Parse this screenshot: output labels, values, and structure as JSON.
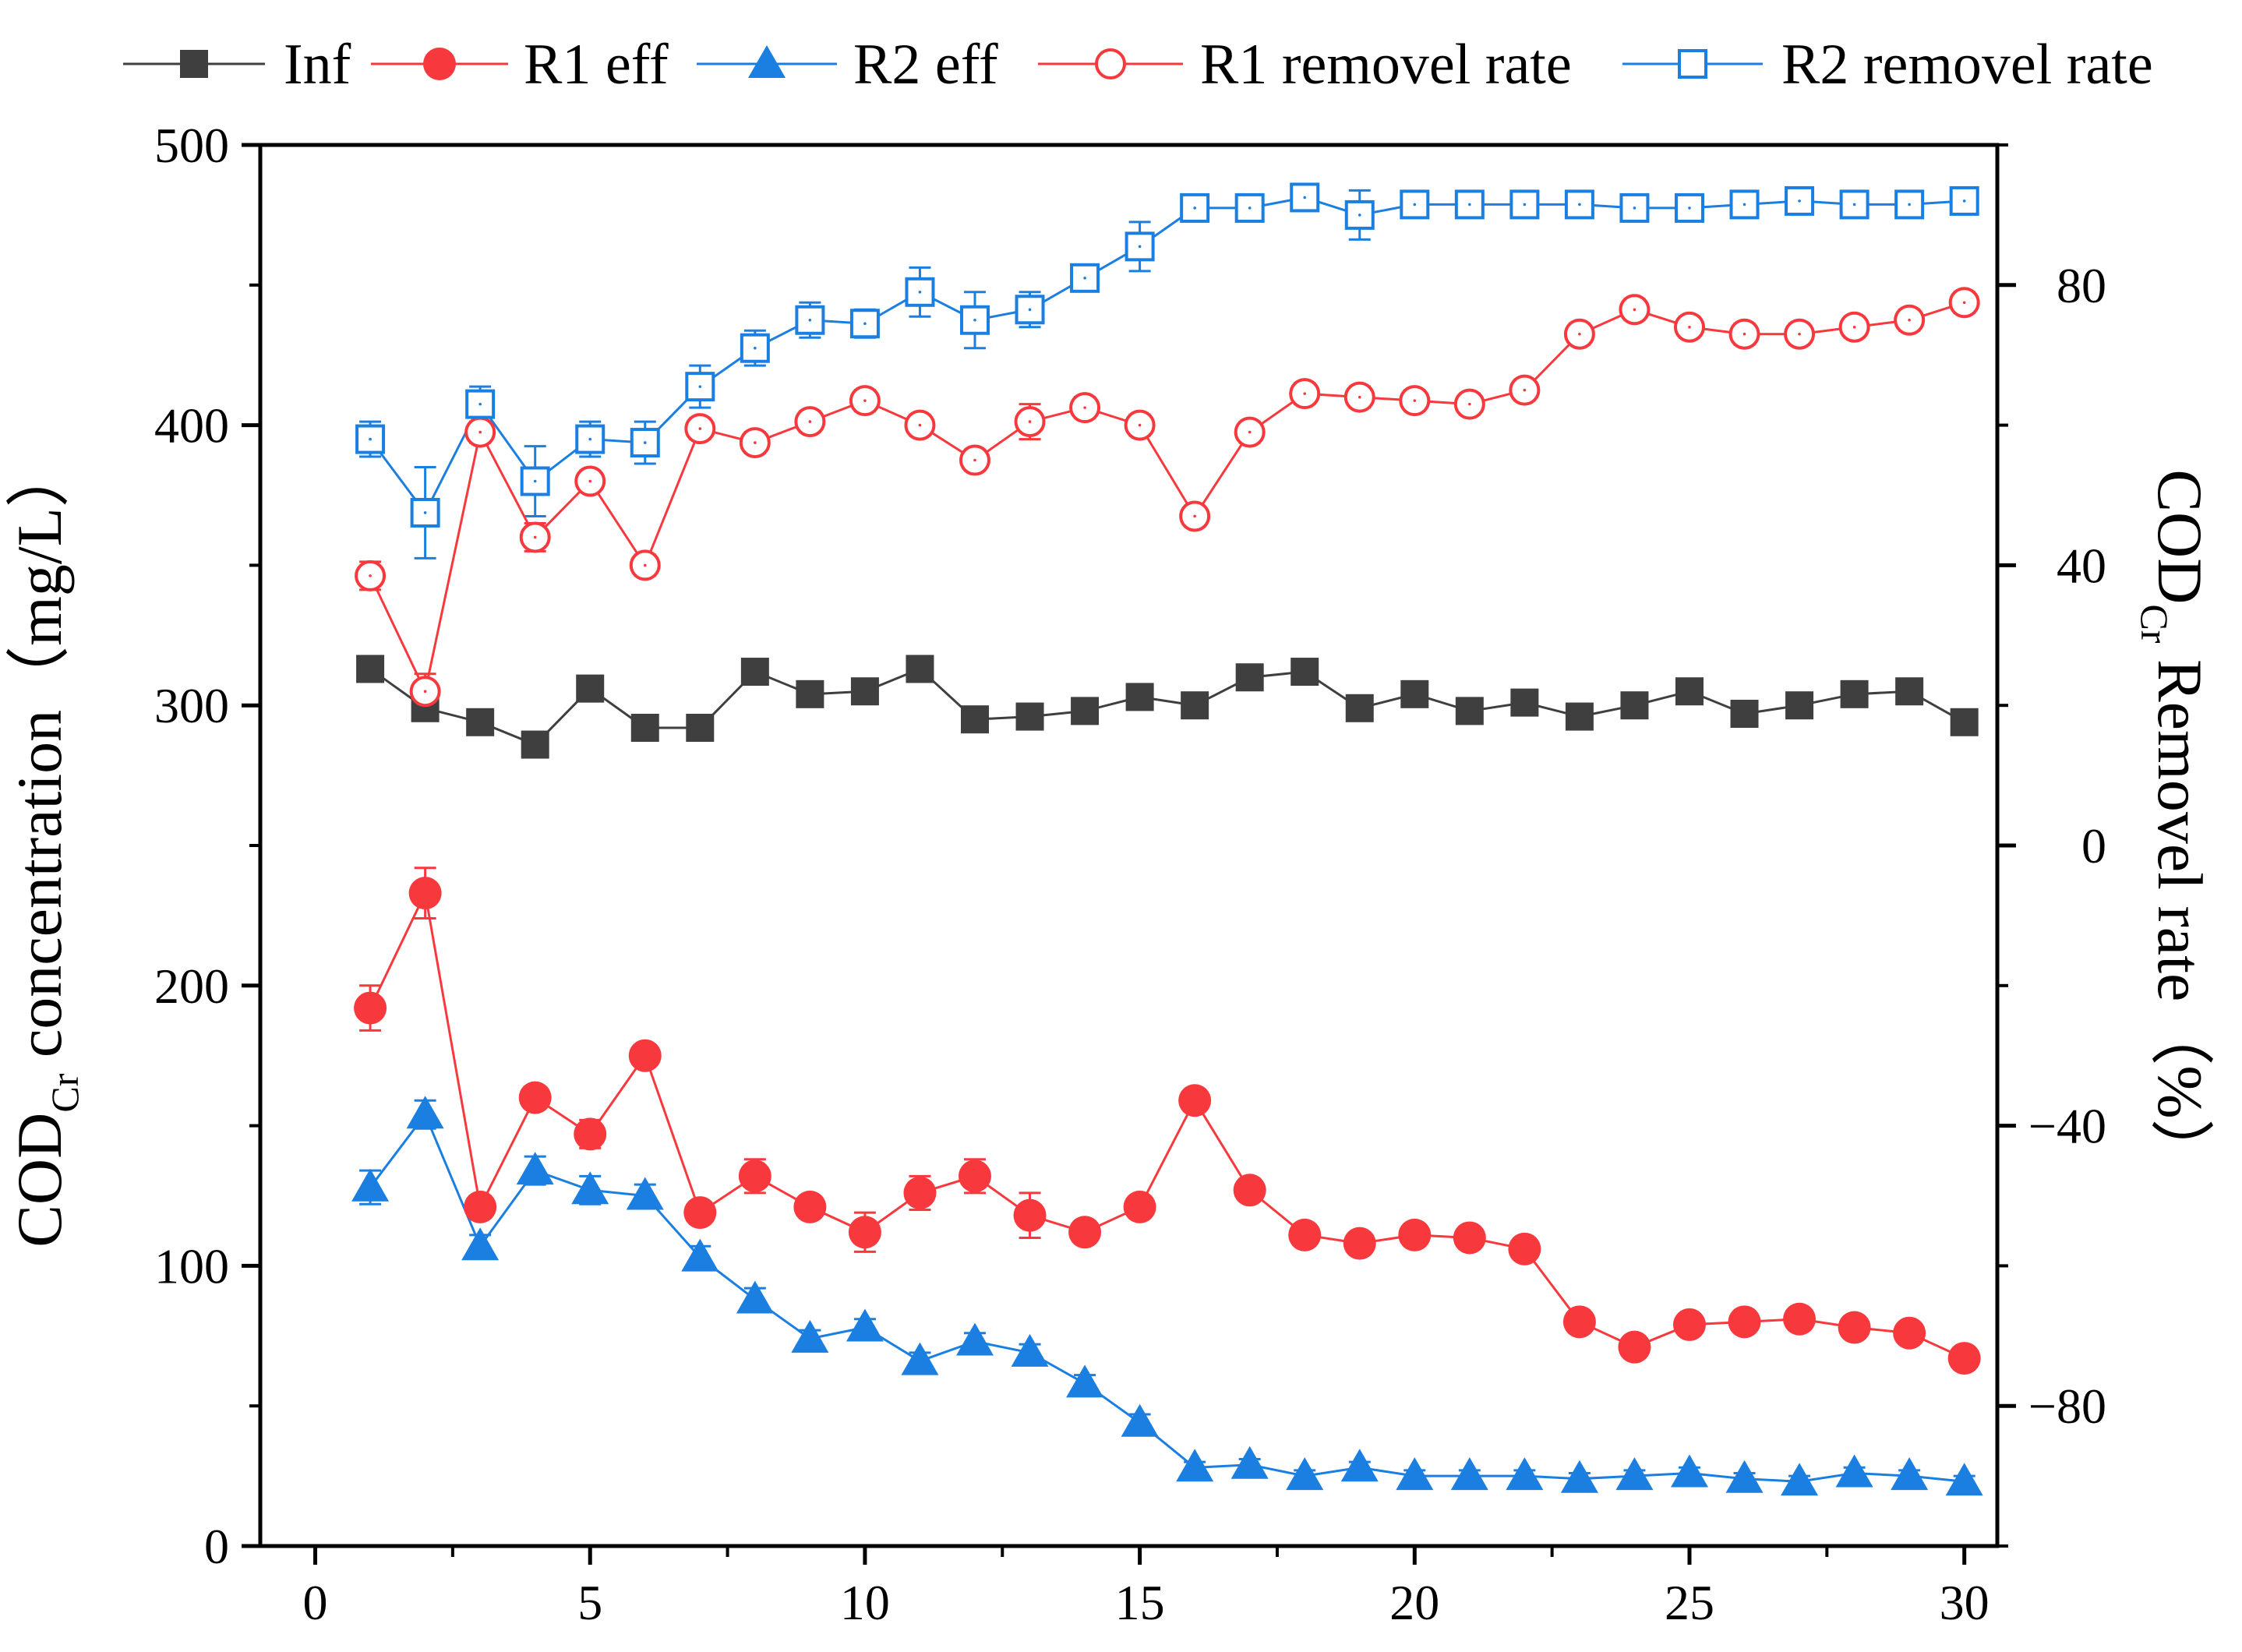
{
  "chart_data": {
    "type": "line",
    "title": "",
    "x": [
      1,
      2,
      3,
      4,
      5,
      6,
      7,
      8,
      9,
      10,
      11,
      12,
      13,
      14,
      15,
      16,
      17,
      18,
      19,
      20,
      21,
      22,
      23,
      24,
      25,
      26,
      27,
      28,
      29,
      30
    ],
    "xlim": [
      -1,
      30.6
    ],
    "xticks": [
      0,
      5,
      10,
      15,
      20,
      25,
      30
    ],
    "xlabel": "",
    "y_left": {
      "label_main": "COD",
      "label_sub": "Cr",
      "label_rest": " concentration（mg/L）",
      "ylim": [
        0,
        500
      ],
      "ticks": [
        0,
        100,
        200,
        300,
        400,
        500
      ]
    },
    "y_right": {
      "label_main": "COD",
      "label_sub": "Cr",
      "label_rest": " Removel rate（%）",
      "ylim": [
        -100,
        100
      ],
      "ticks": [
        -80,
        -40,
        0,
        40,
        80
      ],
      "tick_labels": [
        "−80",
        "−40",
        "0",
        "40",
        "80"
      ]
    },
    "series": [
      {
        "name": "Inf",
        "axis": "left",
        "color": "#3f3f3f",
        "marker": "square-filled",
        "values": [
          313,
          299,
          294,
          286,
          306,
          292,
          292,
          312,
          304,
          305,
          313,
          295,
          296,
          298,
          303,
          300,
          310,
          312,
          299,
          304,
          298,
          301,
          296,
          300,
          305,
          297,
          300,
          304,
          305,
          294
        ],
        "errors": [
          3,
          3,
          3,
          3,
          3,
          3,
          3,
          3,
          3,
          3,
          3,
          3,
          3,
          3,
          3,
          3,
          3,
          3,
          3,
          3,
          3,
          3,
          3,
          3,
          3,
          3,
          3,
          3,
          3,
          3
        ]
      },
      {
        "name": "R1 eff",
        "axis": "left",
        "color": "#f7393e",
        "marker": "circle-filled",
        "values": [
          192,
          233,
          121,
          160,
          147,
          175,
          119,
          132,
          121,
          112,
          126,
          132,
          118,
          112,
          121,
          159,
          127,
          111,
          108,
          111,
          110,
          106,
          80,
          71,
          79,
          80,
          81,
          78,
          76,
          67
        ],
        "errors": [
          8,
          9,
          4,
          4,
          5,
          4,
          4,
          6,
          4,
          7,
          6,
          6,
          8,
          4,
          4,
          4,
          4,
          4,
          4,
          4,
          4,
          4,
          4,
          4,
          4,
          4,
          4,
          4,
          4,
          4
        ]
      },
      {
        "name": "R2 eff",
        "axis": "left",
        "color": "#1a7fe0",
        "marker": "triangle-filled",
        "values": [
          128,
          154,
          107,
          134,
          127,
          125,
          103,
          88,
          74,
          78,
          66,
          73,
          69,
          58,
          44,
          28,
          29,
          25,
          28,
          25,
          25,
          25,
          24,
          25,
          26,
          24,
          23,
          26,
          25,
          23
        ],
        "errors": [
          6,
          5,
          4,
          5,
          5,
          4,
          4,
          4,
          3,
          3,
          3,
          3,
          3,
          3,
          3,
          2,
          2,
          2,
          2,
          2,
          2,
          2,
          2,
          2,
          2,
          2,
          2,
          2,
          2,
          2
        ]
      },
      {
        "name": "R1 removel rate",
        "axis": "right",
        "color": "#f7393e",
        "marker": "circle-open",
        "values": [
          38.5,
          22.0,
          59.0,
          44.0,
          52.0,
          40.0,
          59.5,
          57.5,
          60.5,
          63.5,
          60.0,
          55.0,
          60.5,
          62.5,
          60.0,
          47.0,
          59.0,
          64.5,
          64.0,
          63.5,
          63.0,
          65.0,
          73.0,
          76.5,
          74.0,
          73.0,
          73.0,
          74.0,
          75.0,
          77.5
        ],
        "errors": [
          2.0,
          2.5,
          1.5,
          2.0,
          1.5,
          1.5,
          1.5,
          1.5,
          1.5,
          1.5,
          1.5,
          1.5,
          2.5,
          1.5,
          1.5,
          1.5,
          1.5,
          1.5,
          1.5,
          1.5,
          1.5,
          1.5,
          1.5,
          1.5,
          1.5,
          1.5,
          1.5,
          1.5,
          1.5,
          1.5
        ]
      },
      {
        "name": "R2 removel rate",
        "axis": "right",
        "color": "#1a7fe0",
        "marker": "square-open",
        "values": [
          58.0,
          47.5,
          63.0,
          52.0,
          58.0,
          57.5,
          65.5,
          71.0,
          75.0,
          74.5,
          79.0,
          75.0,
          76.5,
          81.0,
          85.5,
          91.0,
          91.0,
          92.5,
          90.0,
          91.5,
          91.5,
          91.5,
          91.5,
          91.0,
          91.0,
          91.5,
          92.0,
          91.5,
          91.5,
          92.0
        ],
        "errors": [
          2.5,
          6.5,
          2.5,
          5.0,
          2.5,
          3.0,
          3.0,
          2.5,
          2.5,
          2.0,
          3.5,
          4.0,
          2.5,
          1.5,
          3.5,
          1.5,
          1.5,
          1.5,
          3.5,
          1.5,
          1.5,
          1.5,
          1.5,
          1.5,
          1.5,
          1.5,
          1.5,
          1.5,
          1.5,
          1.5
        ]
      }
    ],
    "legend_position": "top"
  }
}
